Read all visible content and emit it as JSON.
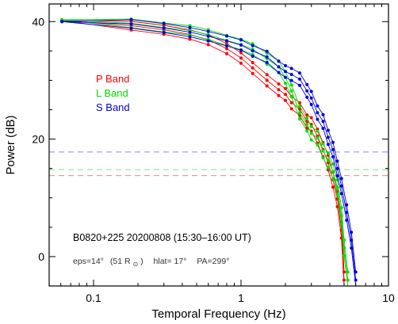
{
  "chart_data": {
    "type": "line",
    "xlabel": "Temporal Frequency (Hz)",
    "ylabel": "Power (dB)",
    "xscale": "log",
    "xlim": [
      0.05,
      10
    ],
    "ylim": [
      -5,
      43
    ],
    "x_ticks": [
      {
        "value": 0.1,
        "label": "0.1"
      },
      {
        "value": 1,
        "label": "1"
      },
      {
        "value": 10,
        "label": "10"
      }
    ],
    "y_ticks": [
      {
        "value": 0,
        "label": "0"
      },
      {
        "value": 20,
        "label": "20"
      },
      {
        "value": 40,
        "label": "40"
      }
    ],
    "grid": false,
    "legend_position": "upper-left",
    "series": [
      {
        "name": "P Band",
        "color": "#ff0000",
        "x": [
          0.061,
          0.18,
          0.3,
          0.45,
          0.6,
          0.8,
          1.0,
          1.2,
          1.5,
          1.8,
          2.0,
          2.2,
          2.5,
          2.8,
          3.0,
          3.3,
          3.6,
          3.9,
          4.2,
          4.5,
          4.8,
          5.0
        ],
        "y": [
          40.2,
          39.3,
          38.6,
          37.8,
          36.9,
          35.4,
          33.8,
          32.1,
          30.0,
          28.4,
          27.6,
          26.2,
          25.1,
          23.0,
          22.5,
          20.5,
          18.2,
          16.0,
          13.1,
          9.8,
          4.5,
          -4.0
        ]
      },
      {
        "name": "L Band",
        "color": "#00dd00",
        "x": [
          0.061,
          0.18,
          0.3,
          0.45,
          0.6,
          0.8,
          1.0,
          1.2,
          1.5,
          1.8,
          2.0,
          2.2,
          2.5,
          2.8,
          3.0,
          3.3,
          3.6,
          3.9,
          4.2,
          4.5,
          4.8,
          5.0,
          5.3
        ],
        "y": [
          40.3,
          39.7,
          39.0,
          38.5,
          37.8,
          36.8,
          36.1,
          35.3,
          33.7,
          32.3,
          30.5,
          28.2,
          24.5,
          22.5,
          21.0,
          20.2,
          18.0,
          16.4,
          14.5,
          11.8,
          7.0,
          1.5,
          -4.0
        ]
      },
      {
        "name": "S Band",
        "color": "#0000dd",
        "x": [
          0.061,
          0.18,
          0.3,
          0.45,
          0.6,
          0.8,
          1.0,
          1.2,
          1.5,
          1.8,
          2.0,
          2.2,
          2.5,
          2.8,
          3.0,
          3.3,
          3.6,
          3.9,
          4.2,
          4.5,
          4.8,
          5.2,
          5.6,
          6.0
        ],
        "y": [
          40.0,
          39.6,
          38.9,
          38.2,
          37.5,
          36.7,
          36.0,
          35.0,
          34.0,
          32.3,
          31.5,
          31.0,
          30.2,
          28.2,
          27.0,
          24.5,
          23.0,
          20.3,
          18.2,
          15.0,
          12.0,
          7.5,
          2.8,
          -4.0
        ]
      }
    ],
    "reference_lines": [
      {
        "band": "S Band",
        "y": 17.8,
        "color": "#8888ee"
      },
      {
        "band": "L Band",
        "y": 14.8,
        "color": "#88dd88"
      },
      {
        "band": "P Band",
        "y": 13.8,
        "color": "#ee8888"
      }
    ],
    "annotations": {
      "main": "B0820+225   20200808   (15:30–16:00 UT)",
      "sub_eps": "eps=14°",
      "sub_r": "(51 R",
      "sub_sun": "⊙",
      "sub_r_close": ")",
      "sub_hlat": "hlat= 17°",
      "sub_pa": "PA=299°"
    }
  }
}
